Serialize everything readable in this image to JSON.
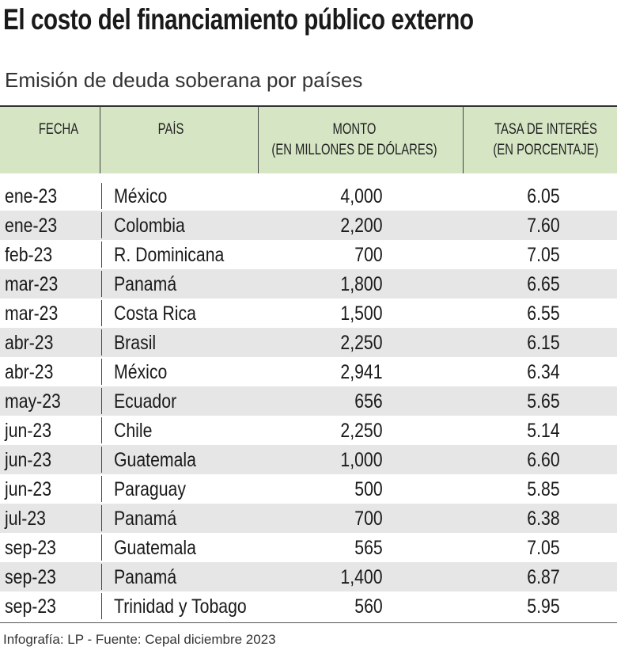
{
  "header": {
    "title": "El costo del financiamiento público externo",
    "subtitle": "Emisión de deuda soberana por países"
  },
  "table": {
    "columns": [
      "FECHA",
      "PAÍS",
      "MONTO\n(EN MILLONES DE DÓLARES)",
      "TASA DE INTERÉS\n(EN PORCENTAJE)"
    ],
    "rows": [
      [
        "ene-23",
        "México",
        "4,000",
        "6.05"
      ],
      [
        "ene-23",
        "Colombia",
        "2,200",
        "7.60"
      ],
      [
        "feb-23",
        "R. Dominicana",
        "700",
        "7.05"
      ],
      [
        "mar-23",
        "Panamá",
        "1,800",
        "6.65"
      ],
      [
        "mar-23",
        "Costa Rica",
        "1,500",
        "6.55"
      ],
      [
        "abr-23",
        "Brasil",
        "2,250",
        "6.15"
      ],
      [
        "abr-23",
        "México",
        "2,941",
        "6.34"
      ],
      [
        "may-23",
        "Ecuador",
        "656",
        "5.65"
      ],
      [
        "jun-23",
        "Chile",
        "2,250",
        "5.14"
      ],
      [
        "jun-23",
        "Guatemala",
        "1,000",
        "6.60"
      ],
      [
        "jun-23",
        "Paraguay",
        "500",
        "5.85"
      ],
      [
        "jul-23",
        "Panamá",
        "700",
        "6.38"
      ],
      [
        "sep-23",
        "Guatemala",
        "565",
        "7.05"
      ],
      [
        "sep-23",
        "Panamá",
        "1,400",
        "6.87"
      ],
      [
        "sep-23",
        "Trinidad y Tobago",
        "560",
        "5.95"
      ]
    ]
  },
  "footer": {
    "source": "Infografía: LP - Fuente: Cepal diciembre 2023"
  }
}
